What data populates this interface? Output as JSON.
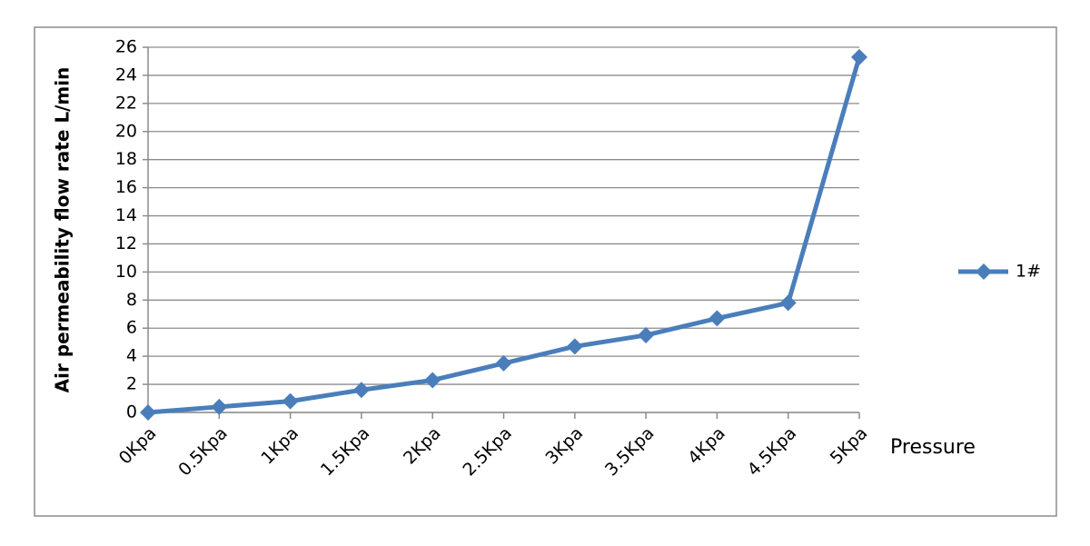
{
  "chart_data": {
    "type": "line",
    "y_label": "Air permeability flow rate L/min",
    "x_label": "Pressure",
    "categories": [
      "0Kpa",
      "0.5Kpa",
      "1Kpa",
      "1.5Kpa",
      "2Kpa",
      "2.5Kpa",
      "3Kpa",
      "3.5Kpa",
      "4Kpa",
      "4.5Kpa",
      "5Kpa"
    ],
    "series": [
      {
        "name": "1#",
        "color": "#4a7ebb",
        "values": [
          0,
          0.4,
          0.8,
          1.6,
          2.3,
          3.5,
          4.7,
          5.5,
          6.7,
          7.8,
          25.3
        ]
      }
    ],
    "ylim": [
      0,
      26
    ],
    "yticks": [
      0,
      2,
      4,
      6,
      8,
      10,
      12,
      14,
      16,
      18,
      20,
      22,
      24,
      26
    ],
    "grid": true,
    "legend": "right"
  }
}
